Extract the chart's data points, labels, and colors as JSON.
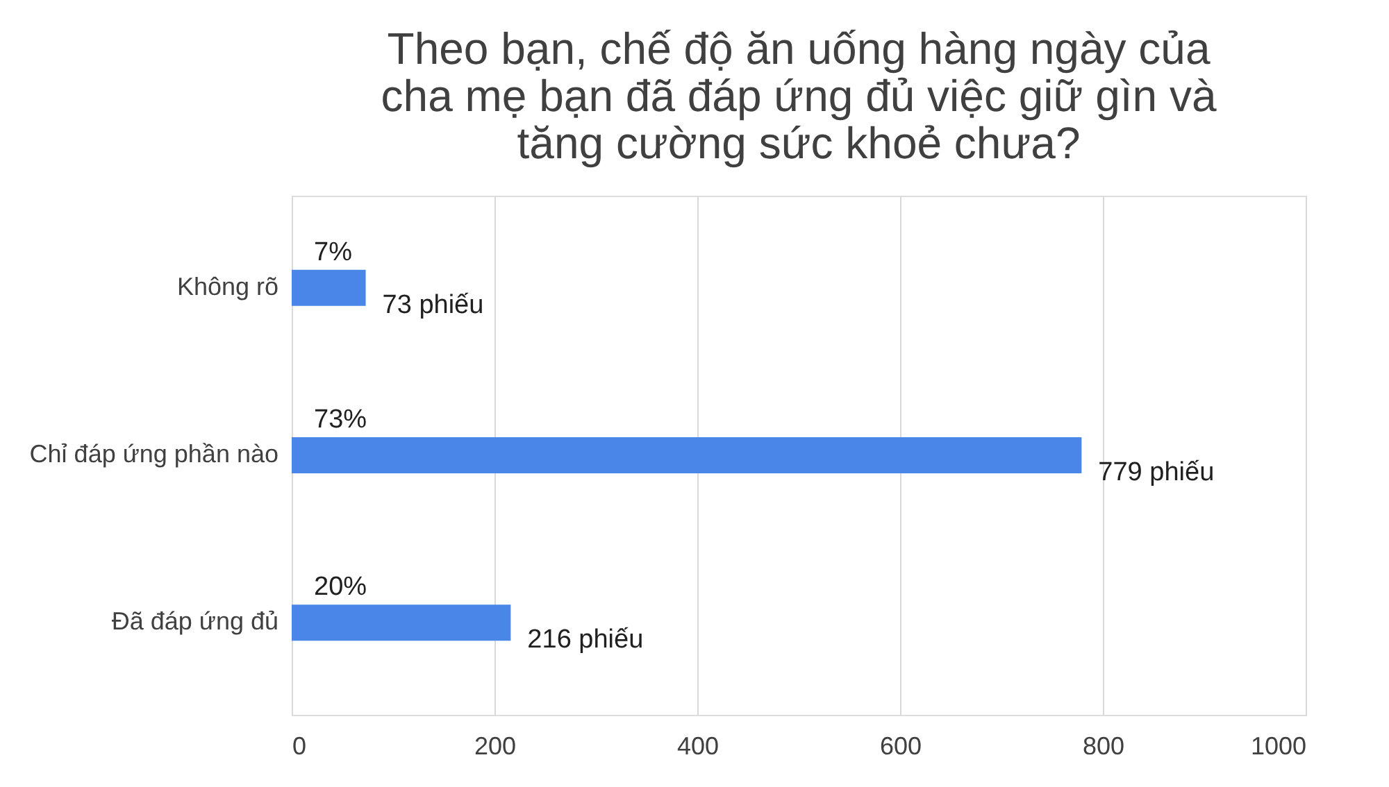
{
  "chart_data": {
    "type": "bar",
    "orientation": "horizontal",
    "title": "Theo bạn, chế độ ăn uống hàng ngày của\ncha mẹ bạn đã đáp ứng đủ việc giữ gìn và\ntăng cường sức khoẻ chưa?",
    "categories": [
      "Không rõ",
      "Chỉ đáp ứng phần nào",
      "Đã đáp ứng đủ"
    ],
    "values": [
      73,
      779,
      216
    ],
    "value_labels": [
      "73 phiếu",
      "779 phiếu",
      "216 phiếu"
    ],
    "color": "#4a86e8",
    "xlim": [
      0,
      1000
    ],
    "xticks": [
      0,
      200,
      400,
      600,
      800,
      1000
    ],
    "grid": "x",
    "annotations": [
      "7%",
      "73%",
      "20%"
    ]
  }
}
